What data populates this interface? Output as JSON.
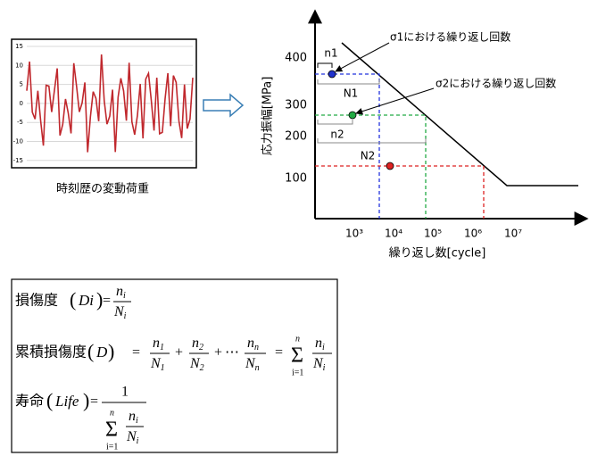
{
  "load_history": {
    "yticks": [
      "15",
      "10",
      "5",
      "0",
      "-5",
      "-10",
      "-15"
    ],
    "caption": "時刻歴の変動荷重"
  },
  "sn_diagram": {
    "y_label": "応力振幅[MPa]",
    "x_label": "繰り返し数[cycle]",
    "yticks": [
      "400",
      "300",
      "200",
      "100"
    ],
    "xticks": [
      "10³",
      "10⁴",
      "10⁵",
      "10⁶",
      "10⁷"
    ],
    "labels": {
      "n1": "n1",
      "N1": "N1",
      "n2": "n2",
      "N2": "N2"
    },
    "annotations": [
      "σ1における繰り返し回数",
      "σ2における繰り返し回数"
    ]
  },
  "symbols": {
    "open": "(",
    "close": ")",
    "eq": "=",
    "plus": "+",
    "dots": "⋯",
    "sum": "Σ",
    "sum_top": "n",
    "sum_bottom": "i=1",
    "one": "1"
  },
  "formulas": {
    "damage": {
      "name": "損傷度",
      "arg": "Di",
      "num": "n",
      "num_sub": "i",
      "den": "N",
      "den_sub": "i"
    },
    "cumulative": {
      "name": "累積損傷度",
      "arg": "D",
      "terms": [
        {
          "num": "n",
          "num_sub": "1",
          "den": "N",
          "den_sub": "1"
        },
        {
          "num": "n",
          "num_sub": "2",
          "den": "N",
          "den_sub": "2"
        },
        {
          "num": "n",
          "num_sub": "n",
          "den": "N",
          "den_sub": "n"
        },
        {
          "num": "n",
          "num_sub": "i",
          "den": "N",
          "den_sub": "i"
        }
      ]
    },
    "life": {
      "name": "寿命",
      "arg": "Life",
      "num": "n",
      "num_sub": "i",
      "den": "N",
      "den_sub": "i"
    }
  }
}
